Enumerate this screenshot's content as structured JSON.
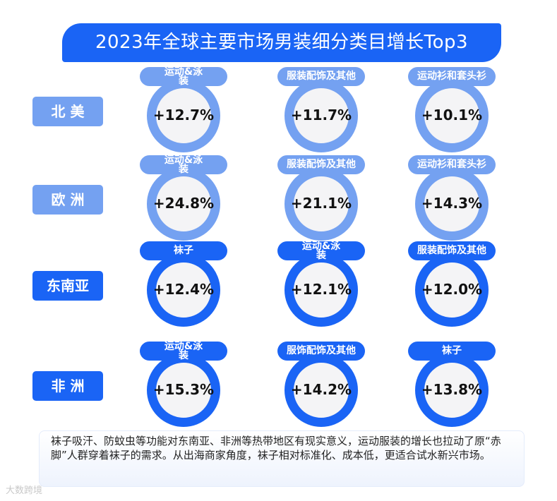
{
  "title": "2023年全球主要市场男装细分类目增长Top3",
  "colors": {
    "light": "#74a1f1",
    "dark": "#1a64f5",
    "ring_fill": "#f4f4f6"
  },
  "chart_data": {
    "type": "table",
    "title": "2023年全球主要市场男装细分类目增长Top3",
    "unit": "%",
    "regions": [
      {
        "name": "北 美",
        "items": [
          {
            "category": "运动&泳装",
            "growth": 12.7,
            "label": "+12.7%"
          },
          {
            "category": "服装配饰及其他",
            "growth": 11.7,
            "label": "+11.7%"
          },
          {
            "category": "运动衫和套头衫",
            "growth": 10.1,
            "label": "+10.1%"
          }
        ]
      },
      {
        "name": "欧 洲",
        "items": [
          {
            "category": "运动&泳装",
            "growth": 24.8,
            "label": "+24.8%"
          },
          {
            "category": "服装配饰及其他",
            "growth": 21.1,
            "label": "+21.1%"
          },
          {
            "category": "运动衫和套头衫",
            "growth": 14.3,
            "label": "+14.3%"
          }
        ]
      },
      {
        "name": "东南亚",
        "items": [
          {
            "category": "袜子",
            "growth": 12.4,
            "label": "+12.4%"
          },
          {
            "category": "运动&泳装",
            "growth": 12.1,
            "label": "+12.1%"
          },
          {
            "category": "服装配饰及其他",
            "growth": 12.0,
            "label": "+12.0%"
          }
        ]
      },
      {
        "name": "非 洲",
        "items": [
          {
            "category": "运动&泳装",
            "growth": 15.3,
            "label": "+15.3%"
          },
          {
            "category": "服饰配饰及其他",
            "growth": 14.2,
            "label": "+14.2%"
          },
          {
            "category": "袜子",
            "growth": 13.8,
            "label": "+13.8%"
          }
        ]
      }
    ]
  },
  "note": "袜子吸汗、防蚊虫等功能对东南亚、非洲等热带地区有现实意义，运动服装的增长也拉动了原“赤脚”人群穿着袜子的需求。从出海商家角度，袜子相对标准化、成本低，更适合试水新兴市场。",
  "watermark": "大数跨境"
}
